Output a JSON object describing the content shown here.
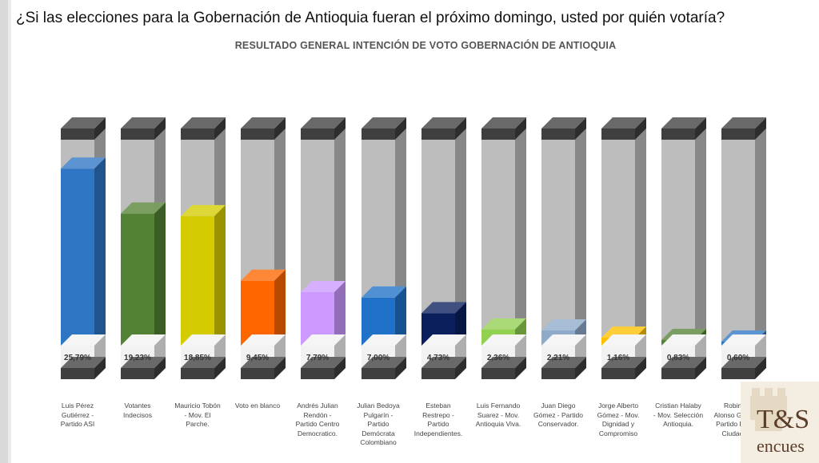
{
  "question": "¿Si las elecciones para la Gobernación de Antioquia fueran el próximo domingo, usted por quién votaría?",
  "chart_data": {
    "type": "bar",
    "title": "RESULTADO GENERAL INTENCIÓN DE VOTO GOBERNACIÓN DE ANTIOQUIA",
    "categories": [
      "Luis Pérez Gutiérrez - Partido ASI",
      "Votantes Indecisos",
      "Mauricio Tobón - Mov. El Parche.",
      "Voto en blanco",
      "Andrés Julian Rendón - Partido Centro Democratico.",
      "Julian Bedoya Pulgarín - Partido Demócrata Colombiano",
      "Esteban Restrepo - Partido Independientes.",
      "Luis Fernando Suarez - Mov. Antioquia Viva.",
      "Juan Diego Gómez - Partido Conservador.",
      "Jorge Alberto Gómez - Mov. Dignidad y Compromiso",
      "Cristian Halaby - Mov. Selección Antioquia.",
      "Robinson Alonso Giraldo - Partido Fuerza Ciudadana"
    ],
    "category_lines": [
      [
        "Luis Pérez",
        "Gutiérrez -",
        "Partido ASI"
      ],
      [
        "Votantes",
        "Indecisos"
      ],
      [
        "Mauricio Tobón",
        "- Mov. El",
        "Parche."
      ],
      [
        "Voto en blanco"
      ],
      [
        "Andrés Julian",
        "Rendón -",
        "Partido Centro",
        "Democratico."
      ],
      [
        "Julian Bedoya",
        "Pulgarín -",
        "Partido",
        "Demócrata",
        "Colombiano"
      ],
      [
        "Esteban",
        "Restrepo -",
        "Partido",
        "Independientes."
      ],
      [
        "Luis Fernando",
        "Suarez - Mov.",
        "Antioquia Viva."
      ],
      [
        "Juan Diego",
        "Gómez - Partido",
        "Conservador."
      ],
      [
        "Jorge Alberto",
        "Gómez - Mov.",
        "Dignidad y",
        "Compromiso"
      ],
      [
        "Cristian Halaby",
        "- Mov. Selección",
        "Antioquia."
      ],
      [
        "Robinson",
        "Alonso Giraldo -",
        "Partido Fuerza",
        "Ciudadana"
      ]
    ],
    "values": [
      25.79,
      19.23,
      18.85,
      9.45,
      7.79,
      7.0,
      4.73,
      2.36,
      2.21,
      1.16,
      0.83,
      0.6
    ],
    "value_labels": [
      "25,79%",
      "19,23%",
      "18,85%",
      "9,45%",
      "7,79%",
      "7,00%",
      "4,73%",
      "2,36%",
      "2,21%",
      "1,16%",
      "0,83%",
      "0,60%"
    ],
    "colors": [
      "#2e75c4",
      "#548235",
      "#d4cc00",
      "#ff6600",
      "#cc99ff",
      "#1f72c8",
      "#0a1f5c",
      "#92d050",
      "#8ea9c9",
      "#ffc000",
      "#548235",
      "#2e75c4"
    ],
    "ylim": [
      0,
      30
    ]
  },
  "logo": {
    "text": "T&S",
    "subtext": "encues"
  }
}
